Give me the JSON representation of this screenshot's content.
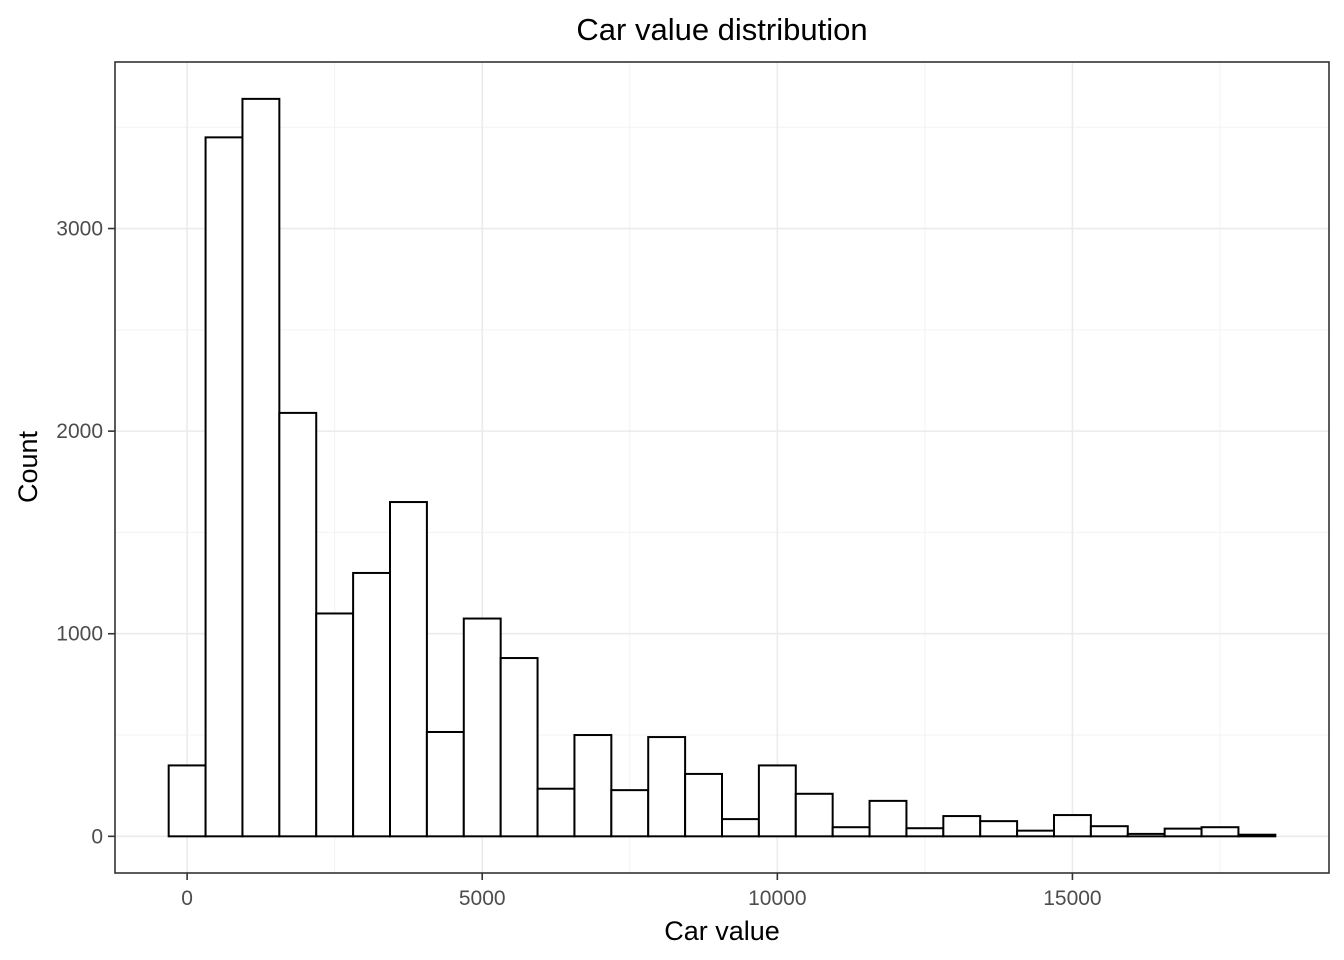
{
  "chart_data": {
    "type": "bar",
    "title": "Car value distribution",
    "xlabel": "Car value",
    "ylabel": "Count",
    "bin_width": 625,
    "bins": [
      {
        "x_start": -312.5,
        "x_end": 312.5,
        "count": 350
      },
      {
        "x_start": 312.5,
        "x_end": 937.5,
        "count": 3450
      },
      {
        "x_start": 937.5,
        "x_end": 1562.5,
        "count": 3640
      },
      {
        "x_start": 1562.5,
        "x_end": 2187.5,
        "count": 2090
      },
      {
        "x_start": 2187.5,
        "x_end": 2812.5,
        "count": 1100
      },
      {
        "x_start": 2812.5,
        "x_end": 3437.5,
        "count": 1300
      },
      {
        "x_start": 3437.5,
        "x_end": 4062.5,
        "count": 1650
      },
      {
        "x_start": 4062.5,
        "x_end": 4687.5,
        "count": 515
      },
      {
        "x_start": 4687.5,
        "x_end": 5312.5,
        "count": 1075
      },
      {
        "x_start": 5312.5,
        "x_end": 5937.5,
        "count": 880
      },
      {
        "x_start": 5937.5,
        "x_end": 6562.5,
        "count": 235
      },
      {
        "x_start": 6562.5,
        "x_end": 7187.5,
        "count": 500
      },
      {
        "x_start": 7187.5,
        "x_end": 7812.5,
        "count": 228
      },
      {
        "x_start": 7812.5,
        "x_end": 8437.5,
        "count": 490
      },
      {
        "x_start": 8437.5,
        "x_end": 9062.5,
        "count": 308
      },
      {
        "x_start": 9062.5,
        "x_end": 9687.5,
        "count": 85
      },
      {
        "x_start": 9687.5,
        "x_end": 10312.5,
        "count": 350
      },
      {
        "x_start": 10312.5,
        "x_end": 10937.5,
        "count": 210
      },
      {
        "x_start": 10937.5,
        "x_end": 11562.5,
        "count": 45
      },
      {
        "x_start": 11562.5,
        "x_end": 12187.5,
        "count": 175
      },
      {
        "x_start": 12187.5,
        "x_end": 12812.5,
        "count": 40
      },
      {
        "x_start": 12812.5,
        "x_end": 13437.5,
        "count": 100
      },
      {
        "x_start": 13437.5,
        "x_end": 14062.5,
        "count": 75
      },
      {
        "x_start": 14062.5,
        "x_end": 14687.5,
        "count": 28
      },
      {
        "x_start": 14687.5,
        "x_end": 15312.5,
        "count": 105
      },
      {
        "x_start": 15312.5,
        "x_end": 15937.5,
        "count": 50
      },
      {
        "x_start": 15937.5,
        "x_end": 16562.5,
        "count": 12
      },
      {
        "x_start": 16562.5,
        "x_end": 17187.5,
        "count": 38
      },
      {
        "x_start": 17187.5,
        "x_end": 17812.5,
        "count": 45
      },
      {
        "x_start": 17812.5,
        "x_end": 18437.5,
        "count": 8
      }
    ],
    "xlim": [
      -1222,
      19347
    ],
    "ylim": [
      -181,
      3822
    ],
    "x_ticks": [
      0,
      5000,
      10000,
      15000
    ],
    "x_tick_labels": [
      "0",
      "5000",
      "10000",
      "15000"
    ],
    "x_minor_ticks": [
      2500,
      7500,
      12500,
      17500
    ],
    "y_ticks": [
      0,
      1000,
      2000,
      3000
    ],
    "y_tick_labels": [
      "0",
      "1000",
      "2000",
      "3000"
    ],
    "y_minor_ticks": [
      500,
      1500,
      2500,
      3500
    ],
    "grid": true,
    "legend": "none",
    "colors": {
      "bar_fill": "#ffffff",
      "bar_outline": "#000000",
      "grid": "#ebebeb",
      "panel_border": "#333333",
      "tick_text": "#4d4d4d"
    }
  }
}
